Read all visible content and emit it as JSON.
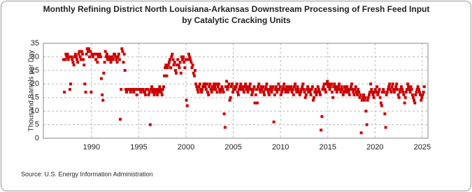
{
  "chart_data": {
    "type": "scatter",
    "title": [
      "Monthly Refining District North Louisiana-Arkansas Downstream Processing of Fresh Feed Input",
      "by Catalytic Cracking Units"
    ],
    "y_label": "Thousand Barrels per Day",
    "source": "Source: U.S. Energy Information Administration",
    "xlim": [
      1984.9,
      2025.6
    ],
    "xticks": [
      1990,
      1995,
      2000,
      2005,
      2010,
      2015,
      2020,
      2025
    ],
    "ylim": [
      0,
      35
    ],
    "yticks": [
      0,
      5,
      10,
      15,
      20,
      25,
      30,
      35
    ],
    "grid": true,
    "series": [
      {
        "color": "#cc0000",
        "x": [
          1987.04,
          1987.13,
          1987.21,
          1987.29,
          1987.38,
          1987.46,
          1987.54,
          1987.63,
          1987.71,
          1987.79,
          1987.88,
          1987.96,
          1988.04,
          1988.13,
          1988.21,
          1988.29,
          1988.38,
          1988.46,
          1988.54,
          1988.63,
          1988.71,
          1988.79,
          1988.88,
          1988.96,
          1989.04,
          1989.13,
          1989.21,
          1989.29,
          1989.38,
          1989.46,
          1989.54,
          1989.63,
          1989.71,
          1989.79,
          1989.88,
          1989.96,
          1990.04,
          1990.13,
          1990.21,
          1990.29,
          1990.38,
          1990.46,
          1990.54,
          1990.63,
          1990.71,
          1990.79,
          1990.88,
          1990.96,
          1991.04,
          1991.13,
          1991.21,
          1991.29,
          1991.38,
          1991.46,
          1991.54,
          1991.63,
          1991.71,
          1991.79,
          1991.88,
          1991.96,
          1992.04,
          1992.13,
          1992.21,
          1992.29,
          1992.38,
          1992.46,
          1992.54,
          1992.63,
          1992.71,
          1992.79,
          1992.88,
          1992.96,
          1993.04,
          1993.13,
          1993.21,
          1993.29,
          1993.38,
          1993.46,
          1993.54,
          1993.63,
          1993.71,
          1993.79,
          1993.88,
          1993.96,
          1994.04,
          1994.13,
          1994.21,
          1994.29,
          1994.38,
          1994.46,
          1994.54,
          1994.63,
          1994.71,
          1994.79,
          1994.88,
          1994.96,
          1995.04,
          1995.13,
          1995.21,
          1995.29,
          1995.38,
          1995.46,
          1995.54,
          1995.63,
          1995.71,
          1995.79,
          1995.88,
          1995.96,
          1996.04,
          1996.13,
          1996.21,
          1996.29,
          1996.38,
          1996.46,
          1996.54,
          1996.63,
          1996.71,
          1996.79,
          1996.88,
          1996.96,
          1997.04,
          1997.13,
          1997.21,
          1997.29,
          1997.38,
          1997.46,
          1997.54,
          1997.63,
          1997.71,
          1997.79,
          1997.88,
          1997.96,
          1998.04,
          1998.13,
          1998.21,
          1998.29,
          1998.38,
          1998.46,
          1998.54,
          1998.63,
          1998.71,
          1998.79,
          1998.88,
          1998.96,
          1999.04,
          1999.13,
          1999.21,
          1999.29,
          1999.38,
          1999.46,
          1999.54,
          1999.63,
          1999.71,
          1999.79,
          1999.88,
          1999.96,
          2000.04,
          2000.13,
          2000.21,
          2000.29,
          2000.38,
          2000.46,
          2000.54,
          2000.63,
          2000.71,
          2000.79,
          2000.88,
          2000.96,
          2001.04,
          2001.13,
          2001.21,
          2001.29,
          2001.38,
          2001.46,
          2001.54,
          2001.63,
          2001.71,
          2001.79,
          2001.88,
          2001.96,
          2002.04,
          2002.13,
          2002.21,
          2002.29,
          2002.38,
          2002.46,
          2002.54,
          2002.63,
          2002.71,
          2002.79,
          2002.88,
          2002.96,
          2003.04,
          2003.13,
          2003.21,
          2003.29,
          2003.38,
          2003.46,
          2003.54,
          2003.63,
          2003.71,
          2003.79,
          2003.88,
          2003.96,
          2004.04,
          2004.13,
          2004.21,
          2004.29,
          2004.38,
          2004.46,
          2004.54,
          2004.63,
          2004.71,
          2004.79,
          2004.88,
          2004.96,
          2005.04,
          2005.13,
          2005.21,
          2005.29,
          2005.38,
          2005.46,
          2005.54,
          2005.63,
          2005.71,
          2005.79,
          2005.88,
          2005.96,
          2006.04,
          2006.13,
          2006.21,
          2006.29,
          2006.38,
          2006.46,
          2006.54,
          2006.63,
          2006.71,
          2006.79,
          2006.88,
          2006.96,
          2007.04,
          2007.13,
          2007.21,
          2007.29,
          2007.38,
          2007.46,
          2007.54,
          2007.63,
          2007.71,
          2007.79,
          2007.88,
          2007.96,
          2008.04,
          2008.13,
          2008.21,
          2008.29,
          2008.38,
          2008.46,
          2008.54,
          2008.63,
          2008.71,
          2008.79,
          2008.88,
          2008.96,
          2009.04,
          2009.13,
          2009.21,
          2009.29,
          2009.38,
          2009.46,
          2009.54,
          2009.63,
          2009.71,
          2009.79,
          2009.88,
          2009.96,
          2010.04,
          2010.13,
          2010.21,
          2010.29,
          2010.38,
          2010.46,
          2010.54,
          2010.63,
          2010.71,
          2010.79,
          2010.88,
          2010.96,
          2011.04,
          2011.13,
          2011.21,
          2011.29,
          2011.38,
          2011.46,
          2011.54,
          2011.63,
          2011.71,
          2011.79,
          2011.88,
          2011.96,
          2012.04,
          2012.13,
          2012.21,
          2012.29,
          2012.38,
          2012.46,
          2012.54,
          2012.63,
          2012.71,
          2012.79,
          2012.88,
          2012.96,
          2013.04,
          2013.13,
          2013.21,
          2013.29,
          2013.38,
          2013.46,
          2013.54,
          2013.63,
          2013.71,
          2013.79,
          2013.88,
          2013.96,
          2014.04,
          2014.13,
          2014.21,
          2014.29,
          2014.38,
          2014.46,
          2014.54,
          2014.63,
          2014.71,
          2014.79,
          2014.88,
          2014.96,
          2015.04,
          2015.13,
          2015.21,
          2015.29,
          2015.38,
          2015.46,
          2015.54,
          2015.63,
          2015.71,
          2015.79,
          2015.88,
          2015.96,
          2016.04,
          2016.13,
          2016.21,
          2016.29,
          2016.38,
          2016.46,
          2016.54,
          2016.63,
          2016.71,
          2016.79,
          2016.88,
          2016.96,
          2017.04,
          2017.13,
          2017.21,
          2017.29,
          2017.38,
          2017.46,
          2017.54,
          2017.63,
          2017.71,
          2017.79,
          2017.88,
          2017.96,
          2018.04,
          2018.13,
          2018.21,
          2018.29,
          2018.38,
          2018.46,
          2018.54,
          2018.63,
          2018.71,
          2018.79,
          2018.88,
          2018.96,
          2019.04,
          2019.13,
          2019.21,
          2019.29,
          2019.38,
          2019.46,
          2019.54,
          2019.63,
          2019.71,
          2019.79,
          2019.88,
          2019.96,
          2020.04,
          2020.13,
          2020.21,
          2020.29,
          2020.38,
          2020.46,
          2020.54,
          2020.63,
          2020.71,
          2020.79,
          2020.88,
          2020.96,
          2021.04,
          2021.13,
          2021.21,
          2021.29,
          2021.38,
          2021.46,
          2021.54,
          2021.63,
          2021.71,
          2021.79,
          2021.88,
          2021.96,
          2022.04,
          2022.13,
          2022.21,
          2022.29,
          2022.38,
          2022.46,
          2022.54,
          2022.63,
          2022.71,
          2022.79,
          2022.88,
          2022.96,
          2023.04,
          2023.13,
          2023.21,
          2023.29,
          2023.38,
          2023.46,
          2023.54,
          2023.63,
          2023.71,
          2023.79,
          2023.88,
          2023.96,
          2024.04,
          2024.13,
          2024.21,
          2024.29,
          2024.38,
          2024.46,
          2024.54,
          2024.63,
          2024.71,
          2024.79,
          2024.88,
          2024.96,
          2025.04,
          2025.13,
          2025.21
        ],
        "values": [
          29,
          17,
          29,
          31,
          30,
          31,
          29,
          30,
          18,
          20,
          30,
          29,
          28,
          27,
          30,
          31,
          30,
          29,
          28,
          31,
          32,
          30,
          29,
          32,
          31,
          29,
          27,
          20,
          17,
          31,
          33,
          32,
          33,
          30,
          32,
          17,
          31,
          30,
          31,
          31,
          31,
          29,
          31,
          28,
          30,
          31,
          31,
          30,
          22,
          16,
          14,
          24,
          28,
          32,
          30,
          31,
          29,
          30,
          29,
          30,
          28,
          29,
          30,
          29,
          31,
          31,
          30,
          29,
          28,
          30,
          31,
          29,
          7,
          18,
          33,
          32,
          28,
          31,
          25,
          18,
          17,
          18,
          18,
          18,
          18,
          17,
          18,
          18,
          18,
          17,
          18,
          18,
          18,
          16,
          18,
          18,
          18,
          18,
          17,
          18,
          18,
          18,
          17,
          17,
          16,
          18,
          18,
          18,
          16,
          17,
          5,
          18,
          19,
          17,
          18,
          16,
          17,
          18,
          17,
          16,
          18,
          17,
          19,
          18,
          17,
          16,
          18,
          19,
          23,
          26,
          27,
          23,
          26,
          27,
          28,
          29,
          26,
          30,
          31,
          29,
          27,
          28,
          25,
          24,
          27,
          29,
          27,
          26,
          28,
          24,
          30,
          29,
          30,
          28,
          26,
          29,
          14,
          12,
          29,
          31,
          30,
          29,
          28,
          26,
          27,
          24,
          23,
          25,
          20,
          19,
          18,
          17,
          19,
          20,
          18,
          17,
          18,
          19,
          20,
          20,
          19,
          18,
          20,
          17,
          16,
          19,
          20,
          18,
          17,
          19,
          18,
          20,
          19,
          18,
          20,
          17,
          19,
          20,
          18,
          17,
          18,
          19,
          18,
          17,
          9,
          4,
          19,
          21,
          18,
          19,
          20,
          14,
          15,
          19,
          20,
          17,
          18,
          19,
          18,
          19,
          20,
          17,
          16,
          18,
          19,
          20,
          18,
          19,
          18,
          17,
          19,
          20,
          18,
          19,
          17,
          18,
          19,
          20,
          18,
          16,
          17,
          18,
          19,
          13,
          16,
          18,
          13,
          19,
          20,
          18,
          17,
          19,
          18,
          19,
          17,
          16,
          18,
          19,
          20,
          18,
          17,
          16,
          18,
          19,
          17,
          18,
          19,
          6,
          16,
          18,
          19,
          17,
          18,
          20,
          18,
          19,
          16,
          17,
          18,
          19,
          20,
          18,
          17,
          19,
          18,
          17,
          19,
          18,
          18,
          19,
          17,
          18,
          16,
          19,
          20,
          18,
          17,
          19,
          18,
          17,
          16,
          17,
          18,
          19,
          20,
          18,
          17,
          15,
          16,
          18,
          19,
          17,
          18,
          17,
          16,
          18,
          19,
          14,
          15,
          17,
          18,
          16,
          17,
          19,
          18,
          17,
          16,
          3,
          8,
          18,
          19,
          20,
          18,
          17,
          20,
          21,
          19,
          20,
          18,
          19,
          20,
          17,
          15,
          19,
          20,
          18,
          19,
          17,
          18,
          19,
          20,
          18,
          17,
          19,
          18,
          16,
          17,
          19,
          18,
          17,
          19,
          18,
          17,
          16,
          18,
          19,
          20,
          18,
          17,
          16,
          18,
          19,
          17,
          16,
          18,
          17,
          15,
          16,
          2,
          14,
          15,
          16,
          14,
          15,
          10,
          5,
          14,
          15,
          16,
          17,
          20,
          18,
          17,
          16,
          15,
          17,
          18,
          17,
          19,
          16,
          17,
          18,
          15,
          13,
          12,
          17,
          18,
          17,
          9,
          4,
          16,
          17,
          18,
          19,
          20,
          18,
          17,
          19,
          20,
          18,
          17,
          18,
          19,
          20,
          18,
          16,
          15,
          17,
          18,
          19,
          18,
          17,
          16,
          13,
          15,
          17,
          18,
          20,
          19,
          18,
          17,
          19,
          18,
          16,
          15,
          14,
          13,
          16,
          17,
          18,
          19,
          18,
          17,
          16,
          14,
          15,
          16,
          17,
          19
        ]
      }
    ]
  }
}
